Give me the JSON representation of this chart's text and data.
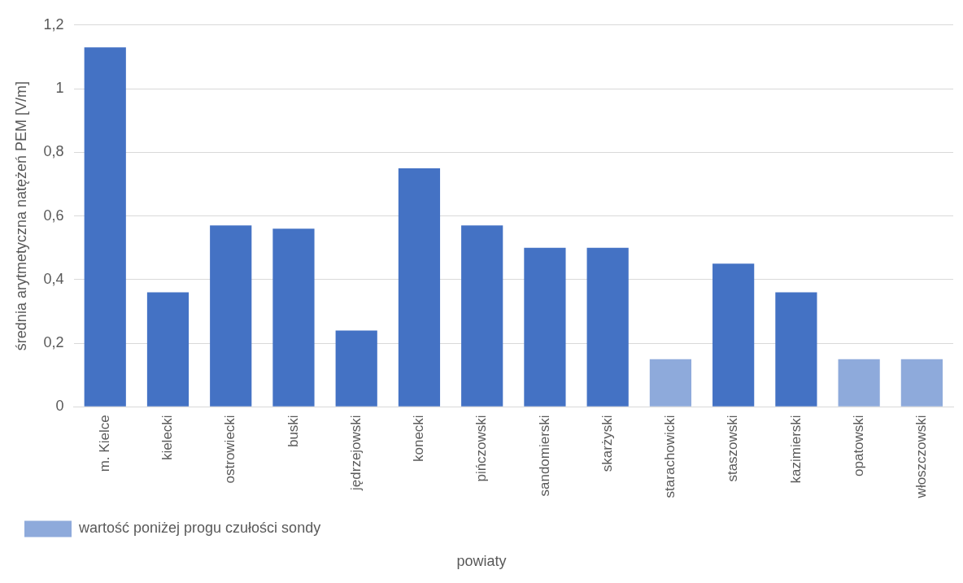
{
  "chart_data": {
    "type": "bar",
    "xlabel": "powiaty",
    "ylabel": "średnia arytmetyczna natężeń PEM [V/m]",
    "categories": [
      "m. Kielce",
      "kielecki",
      "ostrowiecki",
      "buski",
      "jędrzejowski",
      "konecki",
      "pińczowski",
      "sandomierski",
      "skarżyski",
      "starachowicki",
      "staszowski",
      "kazimierski",
      "opatowski",
      "włoszczowski"
    ],
    "stacked": true,
    "series": [
      {
        "color": "#4472c4",
        "values": [
          1.13,
          0.36,
          0.57,
          0.56,
          0.24,
          0.75,
          0.57,
          0.5,
          0.5,
          null,
          0.45,
          0.36,
          null,
          null
        ]
      },
      {
        "name": "wartość poniżej progu czułości sondy",
        "color": "#8eaadb",
        "values": [
          null,
          null,
          null,
          null,
          null,
          null,
          null,
          null,
          null,
          0.15,
          null,
          null,
          0.15,
          0.15
        ]
      }
    ],
    "ylim": [
      0,
      1.2
    ],
    "yticks": [
      {
        "value": 0,
        "label": "0"
      },
      {
        "value": 0.2,
        "label": "0,2"
      },
      {
        "value": 0.4,
        "label": "0,4"
      },
      {
        "value": 0.6,
        "label": "0,6"
      },
      {
        "value": 0.8,
        "label": "0,8"
      },
      {
        "value": 1,
        "label": "1"
      },
      {
        "value": 1.2,
        "label": "1,2"
      }
    ],
    "grid": "y",
    "legend": "bottom left"
  }
}
